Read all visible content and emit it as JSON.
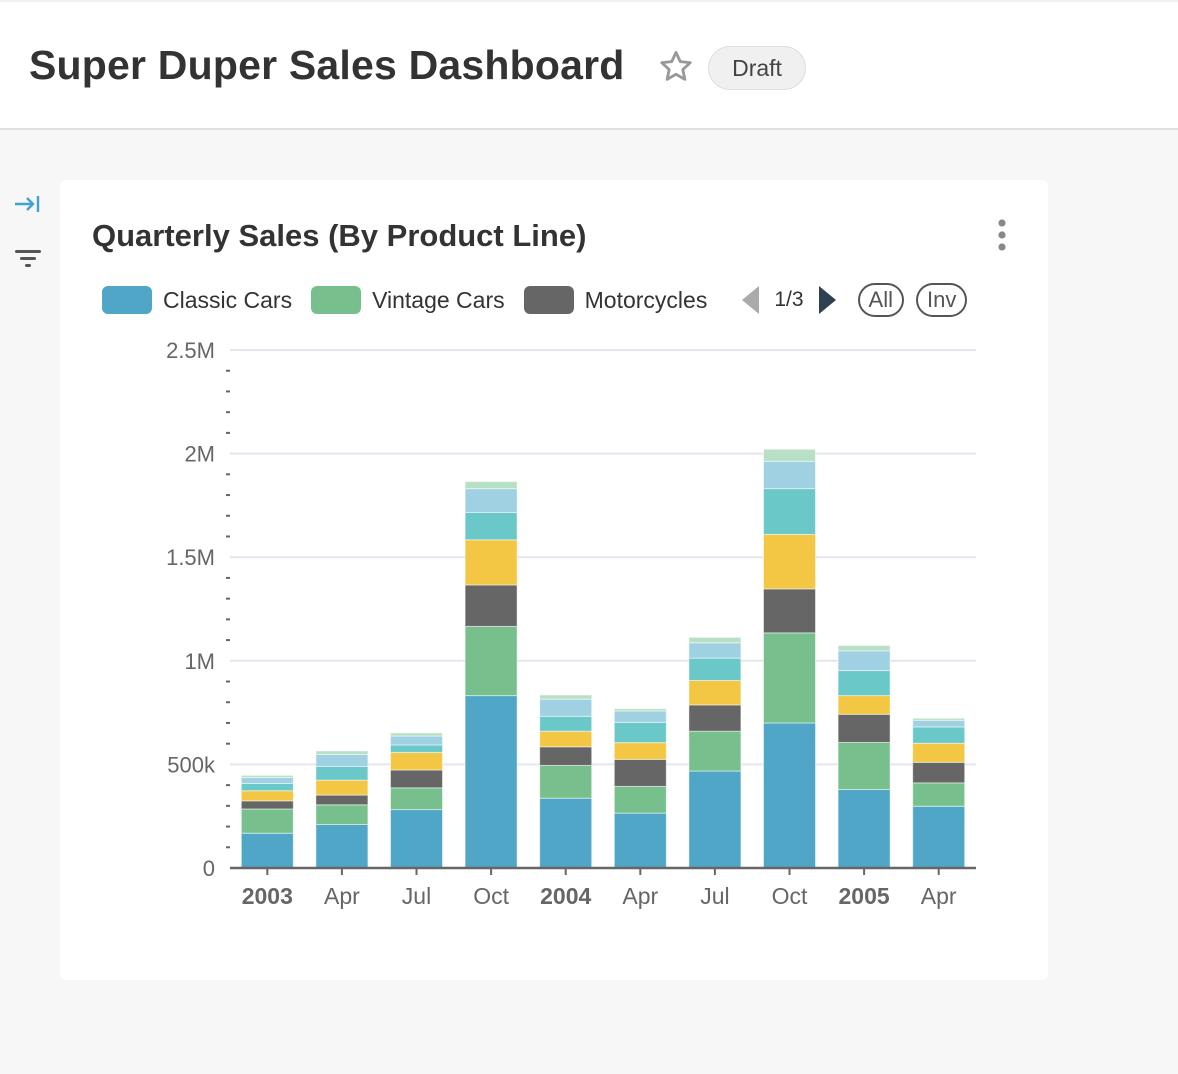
{
  "header": {
    "title": "Super Duper Sales Dashboard",
    "badge": "Draft",
    "favorite_icon": "star-outline-icon"
  },
  "sidebar": {
    "icons": [
      "expand-panel-icon",
      "filter-icon"
    ]
  },
  "card": {
    "title": "Quarterly Sales (By Product Line)",
    "menu_icon": "kebab-menu-icon",
    "legend": {
      "items": [
        {
          "label": "Classic Cars",
          "color": "#4fa6c6"
        },
        {
          "label": "Vintage Cars",
          "color": "#77c08d"
        },
        {
          "label": "Motorcycles",
          "color": "#666666"
        }
      ],
      "page": "1/3",
      "all_label": "All",
      "inv_label": "Inv"
    }
  },
  "chart_data": {
    "type": "bar",
    "stacked": true,
    "title": "Quarterly Sales (By Product Line)",
    "categories": [
      "2003",
      "Apr",
      "Jul",
      "Oct",
      "2004",
      "Apr",
      "Jul",
      "Oct",
      "2005",
      "Apr"
    ],
    "bold_categories": [
      "2003",
      "2004",
      "2005"
    ],
    "ylim": [
      0,
      2500000
    ],
    "yticks": [
      {
        "value": 0,
        "label": "0"
      },
      {
        "value": 500000,
        "label": "500k"
      },
      {
        "value": 1000000,
        "label": "1M"
      },
      {
        "value": 1500000,
        "label": "1.5M"
      },
      {
        "value": 2000000,
        "label": "2M"
      },
      {
        "value": 2500000,
        "label": "2.5M"
      }
    ],
    "grid": true,
    "legend_position": "top",
    "series": [
      {
        "name": "Classic Cars",
        "color": "#4fa6c6",
        "values": [
          168000,
          210000,
          282000,
          832000,
          337000,
          265000,
          468000,
          700000,
          379000,
          298000
        ]
      },
      {
        "name": "Vintage Cars",
        "color": "#77c08d",
        "values": [
          117000,
          95000,
          105000,
          334000,
          158000,
          129000,
          192000,
          435000,
          227000,
          113000
        ]
      },
      {
        "name": "Motorcycles",
        "color": "#666666",
        "values": [
          39000,
          47000,
          86000,
          200000,
          90000,
          130000,
          127000,
          212000,
          136000,
          99000
        ]
      },
      {
        "color": "#f3c744",
        "values": [
          49000,
          72000,
          85000,
          218000,
          75000,
          81000,
          118000,
          263000,
          90000,
          92000
        ]
      },
      {
        "color": "#6ac8c9",
        "values": [
          35000,
          66000,
          36000,
          132000,
          72000,
          98000,
          108000,
          221000,
          121000,
          79000
        ]
      },
      {
        "color": "#a0d1e3",
        "values": [
          29000,
          58000,
          43000,
          115000,
          83000,
          55000,
          74000,
          132000,
          95000,
          32000
        ]
      },
      {
        "color": "#b8e0c4",
        "values": [
          10000,
          17000,
          15000,
          34000,
          20000,
          11000,
          26000,
          58000,
          26000,
          10000
        ]
      }
    ]
  }
}
